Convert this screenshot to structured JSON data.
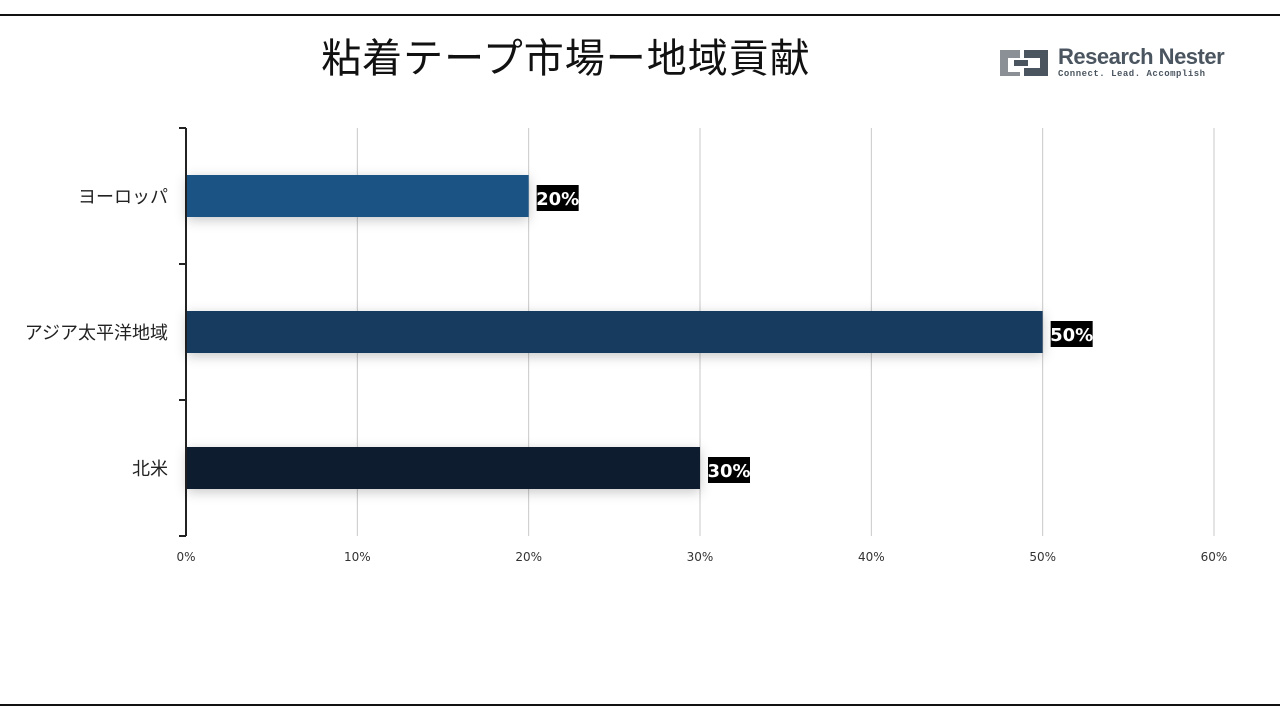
{
  "title": "粘着テープ市場ー地域貢献",
  "logo": {
    "name": "Research Nester",
    "tagline": "Connect. Lead. Accomplish",
    "icon": "research-nester-logo-icon"
  },
  "chart_data": {
    "type": "bar",
    "orientation": "horizontal",
    "categories": [
      "ヨーロッパ",
      "アジア太平洋地域",
      "北米"
    ],
    "values": [
      20,
      50,
      30
    ],
    "data_labels": [
      "20%",
      "50%",
      "30%"
    ],
    "bar_colors": [
      "#1f5285",
      "#173a5e",
      "#0e1e2f"
    ],
    "xlim": [
      0,
      60
    ],
    "xticks": [
      0,
      10,
      20,
      30,
      40,
      50,
      60
    ],
    "xtick_labels": [
      "0%",
      "10%",
      "20%",
      "30%",
      "40%",
      "50%",
      "60%"
    ],
    "grid": true,
    "legend": "none",
    "data_label_style": "black box, white bold text"
  }
}
